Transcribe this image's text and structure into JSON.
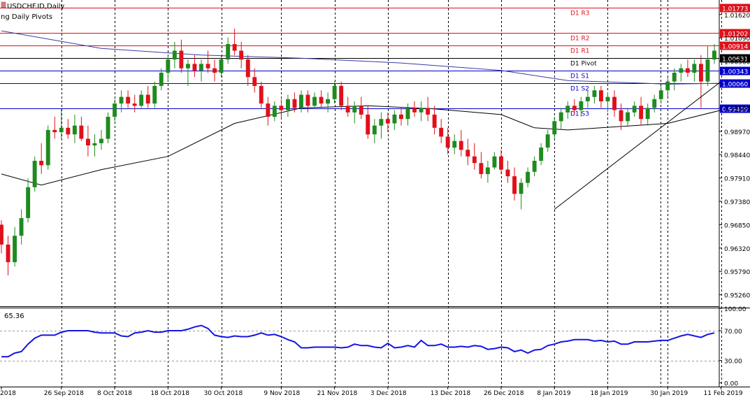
{
  "window": {
    "symbol_title": "USDCHF.ID,Daily",
    "indicator_title": "ng Daily Pivots"
  },
  "colors": {
    "bull": "#1f8a1f",
    "bear": "#e0101a",
    "resistance": "#e0101a",
    "support": "#0000cc",
    "pivot": "#000000",
    "ma_long": "#3a3aa8",
    "ma_short": "#000000",
    "rsi": "#1414e6",
    "grid": "#000000"
  },
  "chart_data": [
    {
      "type": "candlestick",
      "title": "USDCHF.ID,Daily",
      "ylim": [
        0.95,
        1.0195
      ],
      "price_ticks": [
        "1.01620",
        "1.01090",
        "1.00560",
        "0.99500",
        "0.98970",
        "0.98440",
        "0.97910",
        "0.97380",
        "0.96850",
        "0.96320",
        "0.95790",
        "0.95260"
      ],
      "price_tick_values": [
        1.0162,
        1.0109,
        1.0056,
        0.995,
        0.9897,
        0.9844,
        0.9791,
        0.9738,
        0.9685,
        0.9632,
        0.9579,
        0.9526
      ],
      "date_labels": [
        "2018",
        "26 Sep 2018",
        "8 Oct 2018",
        "18 Oct 2018",
        "30 Oct 2018",
        "9 Nov 2018",
        "21 Nov 2018",
        "3 Dec 2018",
        "13 Dec 2018",
        "26 Dec 2018",
        "8 Jan 2019",
        "18 Jan 2019",
        "30 Jan 2019",
        "11 Feb 2019"
      ],
      "date_label_bar_index": [
        0,
        9,
        17,
        25,
        33,
        42,
        50,
        58,
        67,
        75,
        83,
        91,
        100,
        108
      ],
      "pivots": [
        {
          "name": "D1 R3",
          "value": 1.01773,
          "label": "1.01773",
          "kind": "resistance"
        },
        {
          "name": "D1 R2",
          "value": 1.01202,
          "label": "1.01202",
          "kind": "resistance"
        },
        {
          "name": "D1 R1",
          "value": 1.00914,
          "label": "1.00914",
          "kind": "resistance"
        },
        {
          "name": "D1 Pivot",
          "value": 1.00631,
          "label": "1.00631",
          "kind": "pivot"
        },
        {
          "name": "D1 S1",
          "value": 1.00343,
          "label": "1.00343",
          "kind": "support"
        },
        {
          "name": "D1 S2",
          "value": 1.0006,
          "label": "1.00060",
          "kind": "support"
        },
        {
          "name": "D1 S3",
          "value": 0.99489,
          "label": "0.99489",
          "kind": "support"
        }
      ],
      "candles": [
        [
          0.9685,
          0.9695,
          0.962,
          0.964
        ],
        [
          0.964,
          0.966,
          0.957,
          0.96
        ],
        [
          0.96,
          0.968,
          0.959,
          0.966
        ],
        [
          0.966,
          0.972,
          0.964,
          0.97
        ],
        [
          0.97,
          0.979,
          0.969,
          0.977
        ],
        [
          0.977,
          0.984,
          0.976,
          0.983
        ],
        [
          0.983,
          0.987,
          0.98,
          0.982
        ],
        [
          0.982,
          0.991,
          0.981,
          0.99
        ],
        [
          0.99,
          0.993,
          0.988,
          0.9895
        ],
        [
          0.9895,
          0.995,
          0.988,
          0.9905
        ],
        [
          0.9905,
          0.9925,
          0.988,
          0.989
        ],
        [
          0.989,
          0.9935,
          0.987,
          0.991
        ],
        [
          0.991,
          0.993,
          0.9875,
          0.988
        ],
        [
          0.988,
          0.991,
          0.984,
          0.9865
        ],
        [
          0.9865,
          0.989,
          0.984,
          0.987
        ],
        [
          0.987,
          0.99,
          0.9855,
          0.988
        ],
        [
          0.988,
          0.994,
          0.987,
          0.993
        ],
        [
          0.993,
          0.997,
          0.992,
          0.996
        ],
        [
          0.996,
          0.999,
          0.994,
          0.9975
        ],
        [
          0.9975,
          0.999,
          0.995,
          0.996
        ],
        [
          0.996,
          0.998,
          0.994,
          0.9955
        ],
        [
          0.9955,
          0.999,
          0.995,
          0.998
        ],
        [
          0.998,
          1.0,
          0.995,
          0.996
        ],
        [
          0.996,
          1.001,
          0.995,
          1.0
        ],
        [
          1.0,
          1.004,
          0.999,
          1.003
        ],
        [
          1.003,
          1.007,
          1.001,
          1.006
        ],
        [
          1.006,
          1.01,
          1.004,
          1.008
        ],
        [
          1.008,
          1.0105,
          1.003,
          1.004
        ],
        [
          1.004,
          1.006,
          1.0,
          1.005
        ],
        [
          1.005,
          1.007,
          1.002,
          1.0035
        ],
        [
          1.0035,
          1.006,
          1.001,
          1.005
        ],
        [
          1.005,
          1.008,
          1.003,
          1.004
        ],
        [
          1.004,
          1.006,
          1.001,
          1.003
        ],
        [
          1.003,
          1.007,
          1.002,
          1.006
        ],
        [
          1.006,
          1.011,
          1.005,
          1.0095
        ],
        [
          1.0095,
          1.013,
          1.007,
          1.008
        ],
        [
          1.008,
          1.01,
          1.004,
          1.006
        ],
        [
          1.006,
          1.007,
          1.0,
          1.002
        ],
        [
          1.002,
          1.004,
          0.9985,
          1.0
        ],
        [
          1.0,
          1.001,
          0.995,
          0.996
        ],
        [
          0.996,
          0.9975,
          0.991,
          0.993
        ],
        [
          0.993,
          0.9965,
          0.992,
          0.9955
        ],
        [
          0.9955,
          0.997,
          0.9925,
          0.9945
        ],
        [
          0.9945,
          0.998,
          0.993,
          0.997
        ],
        [
          0.997,
          0.9985,
          0.994,
          0.995
        ],
        [
          0.995,
          0.999,
          0.994,
          0.998
        ],
        [
          0.998,
          0.999,
          0.994,
          0.9955
        ],
        [
          0.9955,
          0.9985,
          0.995,
          0.9975
        ],
        [
          0.9975,
          0.999,
          0.995,
          0.996
        ],
        [
          0.996,
          0.9985,
          0.994,
          0.997
        ],
        [
          0.997,
          1.001,
          0.996,
          1.0
        ],
        [
          1.0,
          1.001,
          0.9945,
          0.9955
        ],
        [
          0.9955,
          0.9975,
          0.993,
          0.994
        ],
        [
          0.994,
          0.9965,
          0.9915,
          0.9955
        ],
        [
          0.9955,
          0.9975,
          0.9925,
          0.9935
        ],
        [
          0.9935,
          0.9955,
          0.988,
          0.989
        ],
        [
          0.989,
          0.9925,
          0.987,
          0.991
        ],
        [
          0.991,
          0.994,
          0.988,
          0.9925
        ],
        [
          0.9925,
          0.994,
          0.9895,
          0.9915
        ],
        [
          0.9915,
          0.9945,
          0.99,
          0.9935
        ],
        [
          0.9935,
          0.995,
          0.991,
          0.9925
        ],
        [
          0.9925,
          0.996,
          0.991,
          0.995
        ],
        [
          0.995,
          0.9965,
          0.993,
          0.994
        ],
        [
          0.994,
          0.9965,
          0.992,
          0.995
        ],
        [
          0.995,
          0.9975,
          0.992,
          0.9935
        ],
        [
          0.9935,
          0.9955,
          0.989,
          0.9905
        ],
        [
          0.9905,
          0.9925,
          0.987,
          0.9885
        ],
        [
          0.9885,
          0.9905,
          0.9845,
          0.986
        ],
        [
          0.986,
          0.989,
          0.9845,
          0.9875
        ],
        [
          0.9875,
          0.99,
          0.984,
          0.9855
        ],
        [
          0.9855,
          0.988,
          0.982,
          0.984
        ],
        [
          0.984,
          0.987,
          0.981,
          0.9825
        ],
        [
          0.9825,
          0.985,
          0.979,
          0.98
        ],
        [
          0.98,
          0.983,
          0.978,
          0.9815
        ],
        [
          0.9815,
          0.985,
          0.981,
          0.984
        ],
        [
          0.984,
          0.9855,
          0.98,
          0.981
        ],
        [
          0.981,
          0.983,
          0.978,
          0.9795
        ],
        [
          0.9795,
          0.9815,
          0.974,
          0.9755
        ],
        [
          0.9755,
          0.979,
          0.972,
          0.978
        ],
        [
          0.978,
          0.9815,
          0.977,
          0.9805
        ],
        [
          0.9805,
          0.984,
          0.9795,
          0.983
        ],
        [
          0.983,
          0.987,
          0.982,
          0.986
        ],
        [
          0.986,
          0.99,
          0.985,
          0.989
        ],
        [
          0.989,
          0.993,
          0.988,
          0.992
        ],
        [
          0.992,
          0.995,
          0.99,
          0.994
        ],
        [
          0.994,
          0.9965,
          0.9925,
          0.9955
        ],
        [
          0.9955,
          0.997,
          0.9935,
          0.9945
        ],
        [
          0.9945,
          0.9975,
          0.993,
          0.9965
        ],
        [
          0.9965,
          0.999,
          0.995,
          0.9975
        ],
        [
          0.9975,
          1.0,
          0.996,
          0.999
        ],
        [
          0.999,
          1.0,
          0.995,
          0.9965
        ],
        [
          0.9965,
          0.9985,
          0.994,
          0.9975
        ],
        [
          0.9975,
          0.999,
          0.993,
          0.9945
        ],
        [
          0.9945,
          0.996,
          0.99,
          0.992
        ],
        [
          0.992,
          0.995,
          0.991,
          0.994
        ],
        [
          0.994,
          0.9965,
          0.993,
          0.9955
        ],
        [
          0.9955,
          0.9975,
          0.991,
          0.9925
        ],
        [
          0.9925,
          0.996,
          0.991,
          0.995
        ],
        [
          0.995,
          0.998,
          0.994,
          0.997
        ],
        [
          0.997,
          1.0,
          0.996,
          0.999
        ],
        [
          0.999,
          1.002,
          0.9975,
          1.001
        ],
        [
          1.001,
          1.004,
          0.999,
          1.003
        ],
        [
          1.003,
          1.005,
          1.001,
          1.004
        ],
        [
          1.004,
          1.006,
          1.002,
          1.003
        ],
        [
          1.003,
          1.006,
          1.001,
          1.005
        ],
        [
          1.005,
          1.007,
          0.995,
          1.001
        ],
        [
          1.001,
          1.009,
          1.0,
          1.006
        ],
        [
          1.006,
          1.0095,
          1.005,
          1.008
        ]
      ],
      "ma_long": {
        "x": [
          0,
          15,
          30,
          45,
          60,
          75,
          85,
          95,
          100,
          108
        ],
        "y": [
          1.0125,
          1.0085,
          1.007,
          1.0063,
          1.0052,
          1.0035,
          1.0012,
          1.0007,
          1.0004,
          1.0006
        ]
      },
      "ma_short": {
        "x": [
          0,
          6,
          15,
          25,
          35,
          45,
          55,
          65,
          75,
          80,
          85,
          95,
          100,
          108
        ],
        "y": [
          0.98,
          0.9775,
          0.981,
          0.984,
          0.9915,
          0.995,
          0.9955,
          0.9948,
          0.9935,
          0.9905,
          0.99,
          0.991,
          0.9915,
          0.9945
        ]
      },
      "trendline": {
        "x": [
          83,
          108
        ],
        "y": [
          0.972,
          1.001
        ]
      }
    },
    {
      "type": "line",
      "title": "65.36",
      "ylim": [
        -5,
        100
      ],
      "y_ticks": [
        "100.00",
        "70.00",
        "30.00",
        "0.00"
      ],
      "y_tick_values": [
        100,
        70,
        30,
        0
      ],
      "levels": [
        70,
        30
      ],
      "series": [
        {
          "values": [
            35,
            35,
            40,
            42,
            52,
            60,
            64,
            64,
            64,
            68,
            70,
            70,
            70,
            70,
            68,
            67,
            67,
            67,
            63,
            62,
            67,
            68,
            70,
            68,
            68,
            70,
            70,
            70,
            72,
            75,
            77,
            73,
            64,
            62,
            61,
            63,
            62,
            62,
            64,
            67,
            64,
            65,
            62,
            58,
            55,
            47,
            47,
            48,
            48,
            48,
            48,
            47,
            48,
            52,
            50,
            50,
            48,
            47,
            53,
            47,
            48,
            50,
            48,
            57,
            50,
            50,
            52,
            48,
            48,
            49,
            48,
            50,
            49,
            45,
            46,
            48,
            47,
            42,
            44,
            40,
            44,
            45,
            50,
            52,
            55,
            56,
            58,
            58,
            58,
            56,
            57,
            55,
            56,
            52,
            52,
            55,
            55,
            55,
            56,
            57,
            57,
            60,
            63,
            65,
            63,
            61,
            65,
            67
          ]
        }
      ]
    }
  ]
}
